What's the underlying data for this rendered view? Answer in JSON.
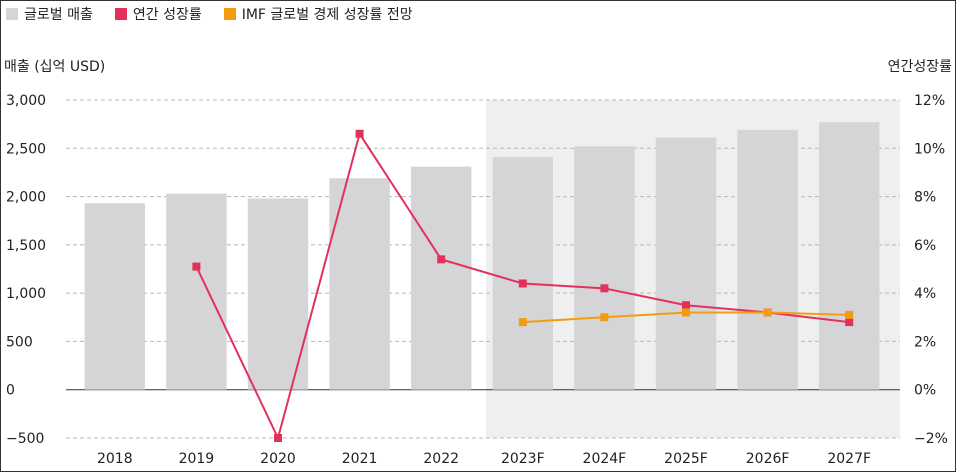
{
  "chart_data": {
    "type": "bar",
    "categories": [
      "2018",
      "2019",
      "2020",
      "2021",
      "2022",
      "2023F",
      "2024F",
      "2025F",
      "2026F",
      "2027F"
    ],
    "bars": {
      "name": "글로벌 매출",
      "values": [
        1930,
        2030,
        1980,
        2190,
        2310,
        2410,
        2520,
        2610,
        2690,
        2770
      ],
      "color": "#d5d5d8"
    },
    "lines": [
      {
        "name": "연간 성장률",
        "color": "#e2315a",
        "values": [
          null,
          5.1,
          -2.0,
          10.6,
          5.4,
          4.4,
          4.2,
          3.5,
          3.2,
          2.8
        ]
      },
      {
        "name": "IMF 글로벌 경제 성장률 전망",
        "color": "#f39c12",
        "values": [
          null,
          null,
          null,
          null,
          null,
          2.8,
          3.0,
          3.2,
          3.2,
          3.1
        ]
      }
    ],
    "ylabel_left": "매출 (십억 USD)",
    "ylabel_right": "연간성장률",
    "ylim_left": [
      -500,
      3000
    ],
    "ylim_right": [
      -2,
      12
    ],
    "yticks_left": [
      "3,000",
      "2,500",
      "2,000",
      "1,500",
      "1,000",
      "500",
      "0",
      "−500"
    ],
    "yticks_right": [
      "12%",
      "10%",
      "8%",
      "6%",
      "4%",
      "2%",
      "0%",
      "−2%"
    ],
    "forecast_shading_from": "2023F",
    "forecast_shade_color": "#efefef",
    "grid": "dashed horizontal",
    "legend_position": "top-left"
  }
}
